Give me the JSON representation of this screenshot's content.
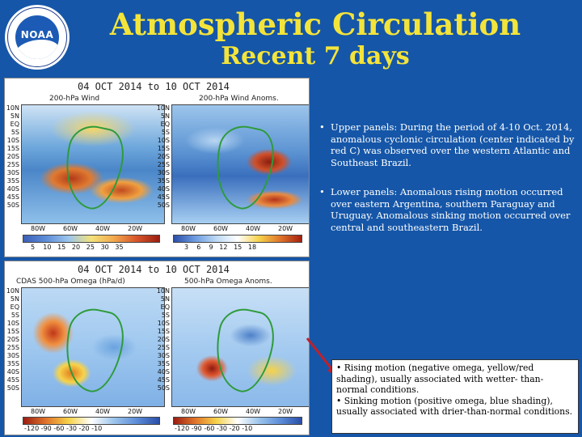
{
  "header": {
    "title": "Atmospheric Circulation",
    "subtitle": "Recent 7 days",
    "logo_text": "NOAA"
  },
  "upper_panel": {
    "date_range": "04 OCT 2014 to 10 OCT 2014",
    "left_title": "200-hPa Wind",
    "right_title": "200-hPa Wind Anoms.",
    "left_colorbar_ticks": [
      "5",
      "10",
      "15",
      "20",
      "25",
      "30",
      "35"
    ],
    "right_colorbar_ticks": [
      "3",
      "6",
      "9",
      "12",
      "15",
      "18"
    ]
  },
  "lower_panel": {
    "date_range": "04 OCT 2014 to 10 OCT 2014",
    "left_title": "CDAS 500-hPa Omega (hPa/d)",
    "right_title": "500-hPa Omega Anoms.",
    "left_colorbar_ticks": [
      "-120",
      "-90",
      "-60",
      "-30",
      "-20",
      "-10"
    ],
    "right_colorbar_ticks": [
      "-120",
      "-90",
      "-60",
      "-30",
      "-20",
      "-10"
    ]
  },
  "map_axes": {
    "latitudes": [
      "10N",
      "5N",
      "EQ",
      "5S",
      "10S",
      "15S",
      "20S",
      "25S",
      "30S",
      "35S",
      "40S",
      "45S",
      "50S"
    ],
    "longitudes": [
      "80W",
      "60W",
      "40W",
      "20W"
    ]
  },
  "bullets": [
    "Upper panels: During the period of 4-10 Oct. 2014, anomalous cyclonic circulation (center indicated by red C) was observed over the western Atlantic and Southeast Brazil.",
    "Lower panels: Anomalous rising motion occurred over eastern Argentina, southern Paraguay and Uruguay. Anomalous sinking motion occurred over central and southeastern Brazil."
  ],
  "info_box": {
    "line1": "• Rising motion (negative omega, yellow/red shading), usually associated with wetter- than-normal conditions.",
    "line2": "• Sinking motion (positive omega, blue shading), usually associated with drier-than-normal conditions."
  },
  "colors": {
    "background": "#1556a8",
    "title": "#f4e43a",
    "text": "#ffffff",
    "pointer": "#c0202a"
  }
}
